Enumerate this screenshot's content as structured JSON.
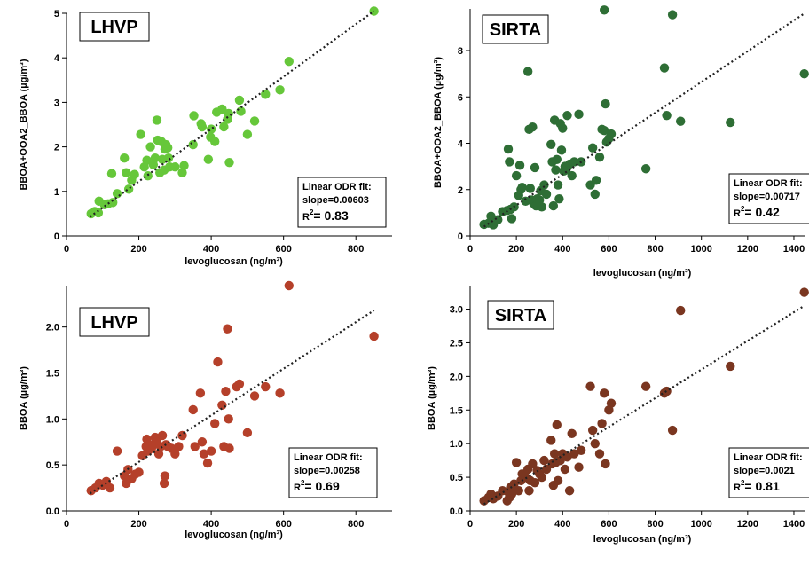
{
  "chart_data": [
    {
      "type": "scatter",
      "site": "LHVP",
      "xlabel": "levoglucosan (ng/m³)",
      "ylabel": "BBOA+OOA2_BBOA (µg/m³)",
      "xlim": [
        0,
        900
      ],
      "ylim": [
        0,
        5
      ],
      "xticks": [
        0,
        200,
        400,
        600,
        800
      ],
      "yticks": [
        0,
        1,
        2,
        3,
        4,
        5
      ],
      "ytick_labels": [
        "0",
        "1",
        "2",
        "3",
        "4",
        "5"
      ],
      "marker_color": "#66c73a",
      "fit_title": "Linear ODR fit:",
      "fit_slope": "slope=0.00603",
      "r2_value": "0.83",
      "fit_line": [
        [
          65,
          0.43
        ],
        [
          850,
          5.05
        ]
      ],
      "points": [
        [
          68,
          0.5
        ],
        [
          78,
          0.55
        ],
        [
          88,
          0.52
        ],
        [
          90,
          0.78
        ],
        [
          105,
          0.7
        ],
        [
          115,
          0.72
        ],
        [
          125,
          1.4
        ],
        [
          128,
          0.75
        ],
        [
          140,
          0.95
        ],
        [
          160,
          1.75
        ],
        [
          165,
          1.42
        ],
        [
          172,
          1.05
        ],
        [
          180,
          1.25
        ],
        [
          188,
          1.38
        ],
        [
          205,
          2.28
        ],
        [
          215,
          1.55
        ],
        [
          222,
          1.7
        ],
        [
          225,
          1.35
        ],
        [
          232,
          2.0
        ],
        [
          240,
          1.6
        ],
        [
          245,
          1.75
        ],
        [
          250,
          2.6
        ],
        [
          252,
          2.15
        ],
        [
          258,
          1.42
        ],
        [
          262,
          2.12
        ],
        [
          265,
          1.72
        ],
        [
          270,
          1.48
        ],
        [
          272,
          1.95
        ],
        [
          275,
          2.05
        ],
        [
          280,
          1.98
        ],
        [
          282,
          1.75
        ],
        [
          285,
          1.55
        ],
        [
          300,
          1.55
        ],
        [
          320,
          1.42
        ],
        [
          325,
          1.58
        ],
        [
          350,
          2.05
        ],
        [
          352,
          2.7
        ],
        [
          372,
          2.52
        ],
        [
          375,
          2.45
        ],
        [
          392,
          1.72
        ],
        [
          398,
          2.22
        ],
        [
          400,
          2.4
        ],
        [
          410,
          2.12
        ],
        [
          415,
          2.78
        ],
        [
          430,
          2.85
        ],
        [
          435,
          2.45
        ],
        [
          445,
          2.62
        ],
        [
          448,
          2.75
        ],
        [
          450,
          1.65
        ],
        [
          478,
          3.05
        ],
        [
          482,
          2.8
        ],
        [
          500,
          2.28
        ],
        [
          520,
          2.58
        ],
        [
          550,
          3.18
        ],
        [
          590,
          3.28
        ],
        [
          615,
          3.92
        ],
        [
          850,
          5.05
        ]
      ]
    },
    {
      "type": "scatter",
      "site": "SIRTA",
      "xlabel": "levoglucosan (ng/m³)",
      "ylabel": "BBOA+OOA2_BBOA (µg/m³)",
      "xlim": [
        0,
        1450
      ],
      "ylim": [
        0,
        9.8
      ],
      "xticks": [
        0,
        200,
        400,
        600,
        800,
        1000,
        1200,
        1400
      ],
      "yticks": [
        0,
        2,
        4,
        6,
        8
      ],
      "ytick_labels": [
        "0",
        "2",
        "4",
        "6",
        "8"
      ],
      "marker_color": "#2e6e35",
      "fit_title": "Linear ODR fit:",
      "fit_slope": "slope=0.00717",
      "r2_value": "0.42",
      "fit_line": [
        [
          60,
          0.4
        ],
        [
          1445,
          9.6
        ]
      ],
      "points": [
        [
          60,
          0.5
        ],
        [
          80,
          0.55
        ],
        [
          90,
          0.85
        ],
        [
          100,
          0.48
        ],
        [
          120,
          0.7
        ],
        [
          140,
          1.05
        ],
        [
          160,
          1.1
        ],
        [
          165,
          3.75
        ],
        [
          170,
          3.2
        ],
        [
          175,
          1.15
        ],
        [
          180,
          0.75
        ],
        [
          190,
          1.25
        ],
        [
          200,
          2.6
        ],
        [
          210,
          1.75
        ],
        [
          215,
          3.05
        ],
        [
          220,
          2.0
        ],
        [
          225,
          2.1
        ],
        [
          240,
          1.5
        ],
        [
          250,
          7.1
        ],
        [
          255,
          4.6
        ],
        [
          260,
          2.05
        ],
        [
          265,
          1.55
        ],
        [
          270,
          4.7
        ],
        [
          275,
          1.4
        ],
        [
          280,
          2.95
        ],
        [
          285,
          1.3
        ],
        [
          290,
          1.6
        ],
        [
          300,
          1.55
        ],
        [
          305,
          1.95
        ],
        [
          310,
          1.25
        ],
        [
          320,
          2.2
        ],
        [
          330,
          1.8
        ],
        [
          350,
          3.95
        ],
        [
          355,
          3.2
        ],
        [
          360,
          1.3
        ],
        [
          365,
          5.0
        ],
        [
          370,
          2.85
        ],
        [
          375,
          3.3
        ],
        [
          380,
          2.2
        ],
        [
          385,
          1.6
        ],
        [
          390,
          4.85
        ],
        [
          395,
          3.7
        ],
        [
          400,
          4.65
        ],
        [
          405,
          2.8
        ],
        [
          410,
          3.0
        ],
        [
          415,
          2.85
        ],
        [
          420,
          5.2
        ],
        [
          430,
          3.1
        ],
        [
          440,
          2.6
        ],
        [
          450,
          3.2
        ],
        [
          470,
          5.25
        ],
        [
          480,
          3.2
        ],
        [
          520,
          2.2
        ],
        [
          530,
          3.8
        ],
        [
          540,
          1.8
        ],
        [
          545,
          2.4
        ],
        [
          560,
          3.4
        ],
        [
          570,
          4.6
        ],
        [
          580,
          4.55
        ],
        [
          585,
          5.7
        ],
        [
          590,
          4.05
        ],
        [
          600,
          4.2
        ],
        [
          610,
          4.4
        ],
        [
          580,
          9.75
        ],
        [
          760,
          2.9
        ],
        [
          840,
          7.25
        ],
        [
          850,
          5.2
        ],
        [
          875,
          9.55
        ],
        [
          910,
          4.95
        ],
        [
          1125,
          4.9
        ],
        [
          1445,
          7.0
        ]
      ]
    },
    {
      "type": "scatter",
      "site": "LHVP",
      "xlabel": "levoglucosan (ng/m³)",
      "ylabel": "BBOA (µg/m³)",
      "xlim": [
        0,
        900
      ],
      "ylim": [
        0,
        2.45
      ],
      "xticks": [
        0,
        200,
        400,
        600,
        800
      ],
      "yticks": [
        0,
        0.5,
        1.0,
        1.5,
        2.0
      ],
      "ytick_labels": [
        "0.0",
        "0.5",
        "1.0",
        "1.5",
        "2.0"
      ],
      "marker_color": "#b5402a",
      "fit_title": "Linear ODR fit:",
      "fit_slope": "slope=0.00258",
      "r2_value": "0.69",
      "fit_line": [
        [
          65,
          0.19
        ],
        [
          850,
          2.18
        ]
      ],
      "points": [
        [
          68,
          0.22
        ],
        [
          80,
          0.25
        ],
        [
          90,
          0.3
        ],
        [
          100,
          0.28
        ],
        [
          110,
          0.32
        ],
        [
          120,
          0.25
        ],
        [
          140,
          0.65
        ],
        [
          160,
          0.38
        ],
        [
          165,
          0.3
        ],
        [
          170,
          0.45
        ],
        [
          180,
          0.35
        ],
        [
          190,
          0.4
        ],
        [
          200,
          0.42
        ],
        [
          210,
          0.6
        ],
        [
          220,
          0.7
        ],
        [
          222,
          0.78
        ],
        [
          225,
          0.65
        ],
        [
          235,
          0.68
        ],
        [
          240,
          0.72
        ],
        [
          245,
          0.8
        ],
        [
          250,
          0.75
        ],
        [
          255,
          0.62
        ],
        [
          260,
          0.7
        ],
        [
          265,
          0.82
        ],
        [
          270,
          0.3
        ],
        [
          272,
          0.38
        ],
        [
          275,
          0.72
        ],
        [
          280,
          0.7
        ],
        [
          290,
          0.68
        ],
        [
          300,
          0.62
        ],
        [
          310,
          0.7
        ],
        [
          320,
          0.82
        ],
        [
          350,
          1.1
        ],
        [
          355,
          0.7
        ],
        [
          370,
          1.28
        ],
        [
          375,
          0.75
        ],
        [
          380,
          0.62
        ],
        [
          390,
          0.52
        ],
        [
          400,
          0.65
        ],
        [
          410,
          0.95
        ],
        [
          418,
          1.62
        ],
        [
          430,
          1.15
        ],
        [
          435,
          0.7
        ],
        [
          440,
          1.3
        ],
        [
          445,
          1.98
        ],
        [
          448,
          1.0
        ],
        [
          450,
          0.68
        ],
        [
          470,
          1.35
        ],
        [
          478,
          1.38
        ],
        [
          500,
          0.85
        ],
        [
          520,
          1.25
        ],
        [
          550,
          1.35
        ],
        [
          590,
          1.28
        ],
        [
          615,
          2.45
        ],
        [
          850,
          1.9
        ]
      ]
    },
    {
      "type": "scatter",
      "site": "SIRTA",
      "xlabel": "levoglucosan (ng/m³)",
      "ylabel": "BBOA (µg/m³)",
      "xlim": [
        0,
        1450
      ],
      "ylim": [
        0,
        3.35
      ],
      "xticks": [
        0,
        200,
        400,
        600,
        800,
        1000,
        1200,
        1400
      ],
      "yticks": [
        0,
        0.5,
        1.0,
        1.5,
        2.0,
        2.5,
        3.0
      ],
      "ytick_labels": [
        "0.0",
        "0.5",
        "1.0",
        "1.5",
        "2.0",
        "2.5",
        "3.0"
      ],
      "marker_color": "#7a3620",
      "fit_title": "Linear ODR fit:",
      "fit_slope": "slope=0.0021",
      "r2_value": "0.81",
      "fit_line": [
        [
          60,
          0.1
        ],
        [
          1445,
          3.05
        ]
      ],
      "points": [
        [
          60,
          0.15
        ],
        [
          80,
          0.2
        ],
        [
          90,
          0.25
        ],
        [
          100,
          0.18
        ],
        [
          120,
          0.22
        ],
        [
          140,
          0.3
        ],
        [
          160,
          0.15
        ],
        [
          165,
          0.28
        ],
        [
          170,
          0.2
        ],
        [
          175,
          0.35
        ],
        [
          180,
          0.25
        ],
        [
          190,
          0.4
        ],
        [
          200,
          0.72
        ],
        [
          210,
          0.3
        ],
        [
          220,
          0.45
        ],
        [
          225,
          0.55
        ],
        [
          240,
          0.5
        ],
        [
          250,
          0.62
        ],
        [
          255,
          0.3
        ],
        [
          260,
          0.45
        ],
        [
          270,
          0.7
        ],
        [
          280,
          0.42
        ],
        [
          290,
          0.6
        ],
        [
          300,
          0.55
        ],
        [
          310,
          0.5
        ],
        [
          320,
          0.75
        ],
        [
          330,
          0.62
        ],
        [
          350,
          1.05
        ],
        [
          355,
          0.7
        ],
        [
          360,
          0.38
        ],
        [
          365,
          0.85
        ],
        [
          370,
          0.72
        ],
        [
          375,
          1.28
        ],
        [
          380,
          0.45
        ],
        [
          390,
          0.75
        ],
        [
          400,
          0.85
        ],
        [
          410,
          0.62
        ],
        [
          420,
          0.8
        ],
        [
          430,
          0.3
        ],
        [
          440,
          1.15
        ],
        [
          450,
          0.85
        ],
        [
          470,
          0.65
        ],
        [
          480,
          0.9
        ],
        [
          520,
          1.85
        ],
        [
          530,
          1.2
        ],
        [
          540,
          1.0
        ],
        [
          560,
          0.85
        ],
        [
          570,
          1.3
        ],
        [
          580,
          1.75
        ],
        [
          585,
          0.7
        ],
        [
          600,
          1.5
        ],
        [
          610,
          1.6
        ],
        [
          760,
          1.85
        ],
        [
          840,
          1.75
        ],
        [
          850,
          1.78
        ],
        [
          875,
          1.2
        ],
        [
          910,
          2.98
        ],
        [
          1125,
          2.15
        ],
        [
          1445,
          3.25
        ]
      ]
    }
  ]
}
